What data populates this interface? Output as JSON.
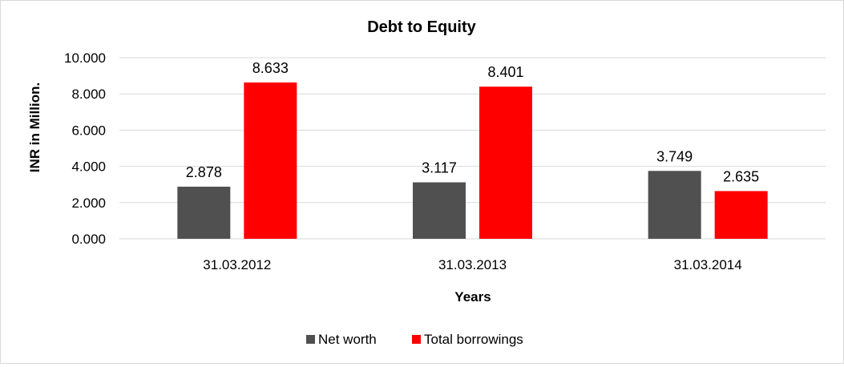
{
  "chart_data": {
    "type": "bar",
    "title": "Debt to Equity",
    "xlabel": "Years",
    "ylabel": "INR in Million.",
    "categories": [
      "31.03.2012",
      "31.03.2013",
      "31.03.2014"
    ],
    "series": [
      {
        "name": "Net worth",
        "values": [
          2.878,
          3.117,
          3.749
        ],
        "color": "#505050"
      },
      {
        "name": "Total borrowings",
        "values": [
          8.633,
          8.401,
          2.635
        ],
        "color": "#ff0000"
      }
    ],
    "data_labels": [
      [
        "2.878",
        "3.117",
        "3.749"
      ],
      [
        "8.633",
        "8.401",
        "2.635"
      ]
    ],
    "ylim": [
      0,
      10
    ],
    "yticks": [
      0,
      2,
      4,
      6,
      8,
      10
    ],
    "ytick_labels": [
      "0.000",
      "2.000",
      "4.000",
      "6.000",
      "8.000",
      "10.000"
    ],
    "grid": true,
    "legend_position": "bottom-center",
    "gridline_color": "#d9d9d9"
  }
}
